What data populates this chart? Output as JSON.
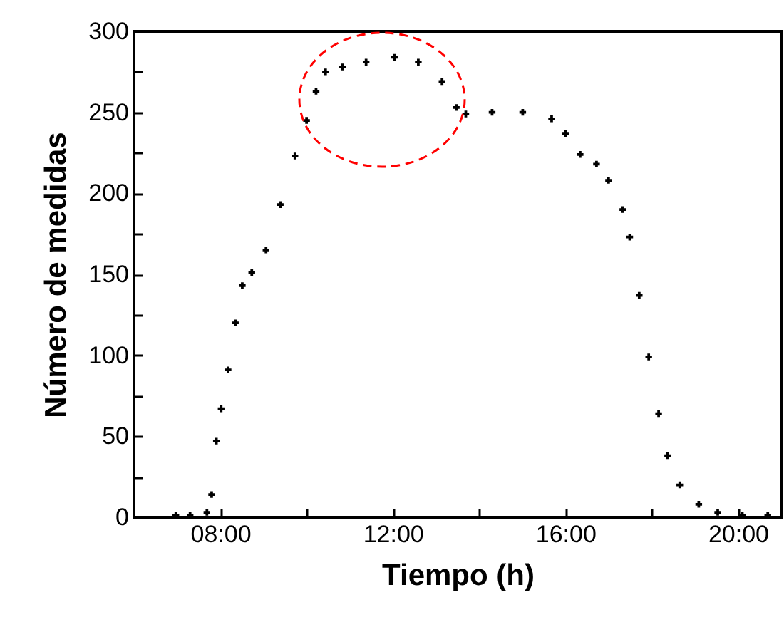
{
  "chart_data": {
    "type": "scatter",
    "xlabel": "Tiempo (h)",
    "ylabel": "Número de medidas",
    "marker": "cross",
    "grid": false,
    "xlim": [
      6,
      21
    ],
    "ylim": [
      0,
      300
    ],
    "xticks": [
      {
        "value": 8,
        "label": "08:00"
      },
      {
        "value": 10,
        "label": null
      },
      {
        "value": 12,
        "label": "12:00"
      },
      {
        "value": 14,
        "label": null
      },
      {
        "value": 16,
        "label": "16:00"
      },
      {
        "value": 18,
        "label": null
      },
      {
        "value": 20,
        "label": "20:00"
      }
    ],
    "yticks": [
      0,
      {
        "value": 25,
        "label": null
      },
      50,
      {
        "value": 75,
        "label": null
      },
      100,
      {
        "value": 125,
        "label": null
      },
      150,
      {
        "value": 175,
        "label": null
      },
      200,
      {
        "value": 225,
        "label": null
      },
      250,
      {
        "value": 275,
        "label": null
      },
      300
    ],
    "series": [
      {
        "color": "#000000",
        "x": [
          6.97,
          7.3,
          7.69,
          7.8,
          7.91,
          8.02,
          8.18,
          8.35,
          8.51,
          8.73,
          9.06,
          9.39,
          9.73,
          10.0,
          10.22,
          10.44,
          10.83,
          11.38,
          12.04,
          12.59,
          13.14,
          13.47,
          13.69,
          14.3,
          15.01,
          15.68,
          16.0,
          16.34,
          16.72,
          17.0,
          17.33,
          17.49,
          17.71,
          17.93,
          18.16,
          18.37,
          18.65,
          19.09,
          19.53,
          20.1,
          20.69
        ],
        "values": [
          1,
          1,
          3,
          14,
          47,
          67,
          91,
          120,
          143,
          151,
          165,
          193,
          223,
          245,
          263,
          275,
          278,
          281,
          284,
          281,
          269,
          253,
          249,
          250,
          250,
          246,
          237,
          224,
          218,
          208,
          190,
          173,
          137,
          99,
          64,
          38,
          20,
          8,
          3,
          1,
          1
        ]
      }
    ]
  }
}
